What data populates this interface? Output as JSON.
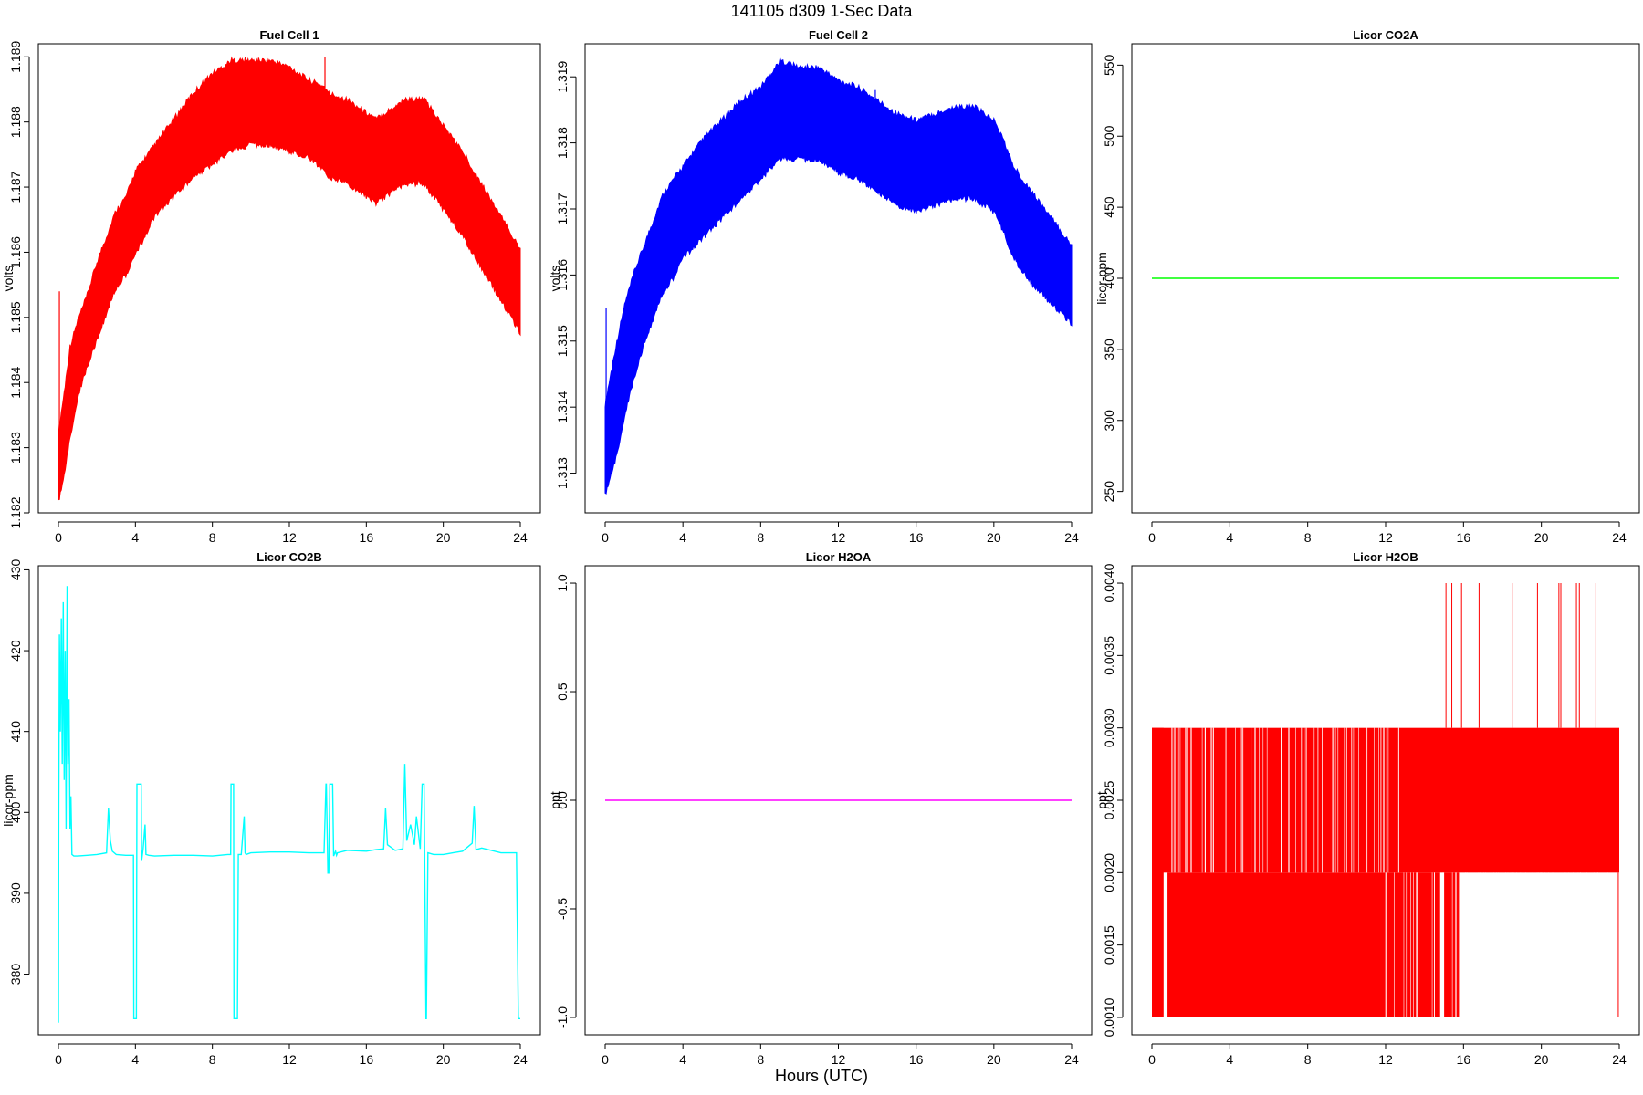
{
  "page": {
    "title": "141105   d309   1-Sec Data",
    "x_axis_title": "Hours (UTC)"
  },
  "chart_data": [
    {
      "type": "line",
      "title": "Fuel Cell 1",
      "ylabel": "volts",
      "xlabel": "",
      "xlim": [
        0,
        24
      ],
      "ylim": [
        1.182,
        1.1892
      ],
      "x_ticks": [
        0,
        4,
        8,
        12,
        16,
        20,
        24
      ],
      "x_tick_labels": [
        "0",
        "4",
        "8",
        "12",
        "16",
        "20",
        "24"
      ],
      "y_ticks": [
        1.182,
        1.183,
        1.184,
        1.185,
        1.186,
        1.187,
        1.188,
        1.189
      ],
      "y_tick_labels": [
        "1.182",
        "1.183",
        "1.184",
        "1.185",
        "1.186",
        "1.187",
        "1.188",
        "1.189"
      ],
      "color": "#ff0000",
      "style": "band",
      "series": [
        {
          "x": [
            0,
            0.3,
            0.6,
            1,
            1.5,
            2,
            2.5,
            3,
            3.5,
            4,
            4.5,
            5,
            6,
            7,
            8,
            9,
            10,
            11,
            12,
            13,
            13.8,
            14,
            15,
            16,
            16.5,
            17,
            18,
            19,
            19.5,
            20,
            21,
            22,
            23,
            24
          ],
          "upper": [
            1.1832,
            1.1838,
            1.1845,
            1.1849,
            1.1853,
            1.1858,
            1.1862,
            1.1866,
            1.1868,
            1.1872,
            1.1874,
            1.1876,
            1.188,
            1.1884,
            1.1887,
            1.1889,
            1.1889,
            1.1889,
            1.1888,
            1.1886,
            1.1885,
            1.1884,
            1.1883,
            1.1881,
            1.188,
            1.1881,
            1.1883,
            1.1883,
            1.1881,
            1.1879,
            1.1875,
            1.187,
            1.1865,
            1.186
          ],
          "lower": [
            1.1822,
            1.1826,
            1.1832,
            1.1838,
            1.1843,
            1.1847,
            1.1851,
            1.1855,
            1.1857,
            1.186,
            1.1863,
            1.1866,
            1.1869,
            1.1872,
            1.1874,
            1.1876,
            1.1877,
            1.1877,
            1.1876,
            1.1875,
            1.1873,
            1.1872,
            1.1871,
            1.1869,
            1.1868,
            1.1869,
            1.1871,
            1.1871,
            1.1869,
            1.1867,
            1.1863,
            1.1858,
            1.1853,
            1.1848
          ]
        }
      ],
      "spikes": [
        {
          "x": 0.05,
          "y0": 1.1822,
          "y1": 1.1854
        },
        {
          "x": 13.85,
          "y0": 1.1876,
          "y1": 1.189
        },
        {
          "x": 23.9,
          "y0": 1.1852,
          "y1": 1.186
        }
      ]
    },
    {
      "type": "line",
      "title": "Fuel Cell 2",
      "ylabel": "volts",
      "xlabel": "",
      "xlim": [
        0,
        24
      ],
      "ylim": [
        1.3124,
        1.3195
      ],
      "x_ticks": [
        0,
        4,
        8,
        12,
        16,
        20,
        24
      ],
      "x_tick_labels": [
        "0",
        "4",
        "8",
        "12",
        "16",
        "20",
        "24"
      ],
      "y_ticks": [
        1.313,
        1.314,
        1.315,
        1.316,
        1.317,
        1.318,
        1.319
      ],
      "y_tick_labels": [
        "1.313",
        "1.314",
        "1.315",
        "1.316",
        "1.317",
        "1.318",
        "1.319"
      ],
      "color": "#0000ff",
      "style": "band",
      "series": [
        {
          "x": [
            0,
            0.5,
            1,
            1.5,
            2,
            2.5,
            3,
            3.5,
            4,
            5,
            6,
            7,
            8,
            9,
            10,
            11,
            12,
            13,
            14,
            15,
            16,
            17,
            18,
            19,
            20,
            20.5,
            21,
            22,
            23,
            24
          ],
          "upper": [
            1.314,
            1.3148,
            1.3155,
            1.316,
            1.3164,
            1.3168,
            1.3172,
            1.3174,
            1.3176,
            1.318,
            1.3183,
            1.3186,
            1.3188,
            1.3192,
            1.3191,
            1.3191,
            1.3189,
            1.3188,
            1.3186,
            1.3184,
            1.3183,
            1.3184,
            1.3185,
            1.3185,
            1.3183,
            1.318,
            1.3176,
            1.3172,
            1.3168,
            1.3164
          ],
          "lower": [
            1.3127,
            1.3132,
            1.3139,
            1.3145,
            1.315,
            1.3154,
            1.3158,
            1.316,
            1.3163,
            1.3166,
            1.3169,
            1.3172,
            1.3175,
            1.3178,
            1.3178,
            1.3178,
            1.3176,
            1.3175,
            1.3173,
            1.3171,
            1.317,
            1.3171,
            1.3172,
            1.3172,
            1.317,
            1.3167,
            1.3163,
            1.3159,
            1.3156,
            1.3153
          ]
        }
      ],
      "spikes": [
        {
          "x": 0.05,
          "y0": 1.3128,
          "y1": 1.3155
        },
        {
          "x": 13.9,
          "y0": 1.3178,
          "y1": 1.3188
        }
      ]
    },
    {
      "type": "line",
      "title": "Licor CO2A",
      "ylabel": "licor-ppm",
      "xlabel": "",
      "xlim": [
        0,
        24
      ],
      "ylim": [
        235,
        565
      ],
      "x_ticks": [
        0,
        4,
        8,
        12,
        16,
        20,
        24
      ],
      "x_tick_labels": [
        "0",
        "4",
        "8",
        "12",
        "16",
        "20",
        "24"
      ],
      "y_ticks": [
        250,
        300,
        350,
        400,
        450,
        500,
        550
      ],
      "y_tick_labels": [
        "250",
        "300",
        "350",
        "400",
        "450",
        "500",
        "550"
      ],
      "color": "#00ff00",
      "style": "line",
      "series": [
        {
          "x": [
            0,
            24
          ],
          "y": [
            400,
            400
          ]
        }
      ]
    },
    {
      "type": "line",
      "title": "Licor CO2B",
      "ylabel": "licor-ppm",
      "xlabel": "",
      "xlim": [
        0,
        24
      ],
      "ylim": [
        372.5,
        430.5
      ],
      "x_ticks": [
        0,
        4,
        8,
        12,
        16,
        20,
        24
      ],
      "x_tick_labels": [
        "0",
        "4",
        "8",
        "12",
        "16",
        "20",
        "24"
      ],
      "y_ticks": [
        380,
        390,
        400,
        410,
        420,
        430
      ],
      "y_tick_labels": [
        "380",
        "390",
        "400",
        "410",
        "420",
        "430"
      ],
      "color": "#00ffff",
      "style": "line",
      "series": [
        {
          "x": [
            0,
            0.02,
            0.05,
            0.1,
            0.15,
            0.2,
            0.25,
            0.3,
            0.35,
            0.4,
            0.45,
            0.5,
            0.55,
            0.6,
            0.65,
            0.7,
            0.8,
            1.0,
            1.5,
            2.0,
            2.5,
            2.6,
            2.7,
            2.8,
            3.0,
            3.5,
            3.9,
            3.92,
            3.95,
            4.05,
            4.08,
            4.1,
            4.3,
            4.32,
            4.4,
            4.5,
            4.55,
            4.7,
            5.0,
            6.0,
            7.0,
            8.0,
            8.8,
            8.95,
            8.97,
            9.0,
            9.1,
            9.12,
            9.2,
            9.3,
            9.35,
            9.5,
            9.65,
            9.7,
            9.75,
            10.0,
            11.0,
            12.0,
            13.0,
            13.8,
            13.9,
            13.92,
            14.0,
            14.05,
            14.1,
            14.25,
            14.3,
            14.4,
            14.45,
            14.5,
            15.0,
            16.0,
            16.5,
            16.9,
            17.0,
            17.1,
            17.5,
            17.9,
            18.0,
            18.1,
            18.3,
            18.5,
            18.6,
            18.8,
            18.9,
            18.92,
            19.0,
            19.1,
            19.12,
            19.2,
            19.5,
            20.0,
            20.5,
            21.0,
            21.5,
            21.6,
            21.7,
            22.0,
            23.0,
            23.8,
            23.9,
            23.92,
            24.0
          ],
          "y": [
            374,
            400,
            422,
            410,
            424,
            406,
            426,
            404,
            420,
            398,
            428,
            406,
            414,
            398,
            402,
            394.8,
            394.6,
            394.6,
            394.7,
            394.8,
            395.0,
            400.5,
            396.5,
            395.2,
            394.8,
            394.7,
            394.7,
            374.5,
            374.5,
            374.5,
            403.5,
            403.5,
            403.5,
            394.0,
            395.5,
            398.5,
            394.8,
            394.7,
            394.6,
            394.7,
            394.7,
            394.6,
            394.8,
            394.8,
            403.5,
            403.5,
            403.5,
            374.5,
            374.5,
            374.5,
            394.8,
            394.8,
            399.5,
            395.0,
            394.8,
            395.0,
            395.1,
            395.1,
            395.0,
            395.0,
            403.5,
            403.5,
            392.5,
            392.5,
            403.5,
            403.5,
            394.6,
            395.2,
            394.7,
            395.0,
            395.3,
            395.2,
            395.4,
            395.5,
            400.5,
            396.0,
            395.3,
            395.5,
            406.0,
            396.5,
            398.5,
            396.0,
            399.5,
            395.5,
            403.5,
            403.5,
            403.5,
            374.5,
            374.5,
            395.0,
            394.8,
            394.8,
            395.0,
            395.2,
            396.2,
            400.8,
            395.4,
            395.6,
            395.0,
            395.0,
            374.5,
            374.5,
            374.5
          ]
        }
      ]
    },
    {
      "type": "line",
      "title": "Licor H2OA",
      "ylabel": "ppt",
      "xlabel": "",
      "xlim": [
        0,
        24
      ],
      "ylim": [
        -1.08,
        1.08
      ],
      "x_ticks": [
        0,
        4,
        8,
        12,
        16,
        20,
        24
      ],
      "x_tick_labels": [
        "0",
        "4",
        "8",
        "12",
        "16",
        "20",
        "24"
      ],
      "y_ticks": [
        -1.0,
        -0.5,
        0.0,
        0.5,
        1.0
      ],
      "y_tick_labels": [
        "-1.0",
        "-0.5",
        "0.0",
        "0.5",
        "1.0"
      ],
      "color": "#ff00ff",
      "style": "line",
      "series": [
        {
          "x": [
            0,
            24
          ],
          "y": [
            0,
            0
          ]
        }
      ]
    },
    {
      "type": "line",
      "title": "Licor H2OB",
      "ylabel": "ppt",
      "xlabel": "",
      "xlim": [
        0,
        24
      ],
      "ylim": [
        0.00088,
        0.00412
      ],
      "x_ticks": [
        0,
        4,
        8,
        12,
        16,
        20,
        24
      ],
      "x_tick_labels": [
        "0",
        "4",
        "8",
        "12",
        "16",
        "20",
        "24"
      ],
      "y_ticks": [
        0.001,
        0.0015,
        0.002,
        0.0025,
        0.003,
        0.0035,
        0.004
      ],
      "y_tick_labels": [
        "0.0010",
        "0.0015",
        "0.0020",
        "0.0025",
        "0.0030",
        "0.0035",
        "0.0040"
      ],
      "color": "#ff0000",
      "style": "blocks",
      "series": [
        {
          "name": "",
          "blocks": [
            {
              "x0": 0,
              "x1": 24,
              "y0": 0.002,
              "y1": 0.003
            },
            {
              "x0": 0.8,
              "x1": 11.5,
              "y0": 0.001,
              "y1": 0.002
            },
            {
              "x0": 11.5,
              "x1": 14.8,
              "y0": 0.001,
              "y1": 0.002
            },
            {
              "x0": 15.0,
              "x1": 15.8,
              "y0": 0.001,
              "y1": 0.002
            },
            {
              "x0": 0,
              "x1": 0.6,
              "y0": 0.001,
              "y1": 0.003
            }
          ],
          "spikes": [
            {
              "x": 15.1,
              "y0": 0.003,
              "y1": 0.004
            },
            {
              "x": 15.4,
              "y0": 0.003,
              "y1": 0.004
            },
            {
              "x": 15.9,
              "y0": 0.003,
              "y1": 0.004
            },
            {
              "x": 16.8,
              "y0": 0.003,
              "y1": 0.004
            },
            {
              "x": 18.5,
              "y0": 0.003,
              "y1": 0.004
            },
            {
              "x": 19.8,
              "y0": 0.003,
              "y1": 0.004
            },
            {
              "x": 20.9,
              "y0": 0.003,
              "y1": 0.004
            },
            {
              "x": 21.0,
              "y0": 0.003,
              "y1": 0.004
            },
            {
              "x": 21.8,
              "y0": 0.003,
              "y1": 0.004
            },
            {
              "x": 21.95,
              "y0": 0.003,
              "y1": 0.004
            },
            {
              "x": 22.8,
              "y0": 0.003,
              "y1": 0.004
            },
            {
              "x": 23.95,
              "y0": 0.001,
              "y1": 0.002
            }
          ]
        }
      ]
    }
  ]
}
